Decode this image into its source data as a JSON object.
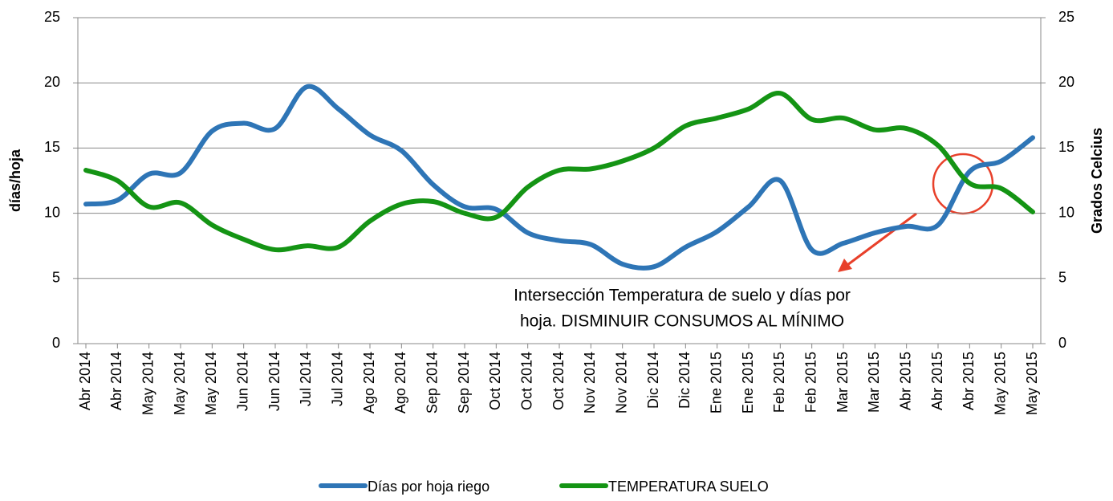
{
  "chart_data": {
    "type": "line",
    "categories": [
      "Abr 2014",
      "Abr 2014",
      "May 2014",
      "May 2014",
      "May 2014",
      "Jun 2014",
      "Jun 2014",
      "Jul 2014",
      "Jul 2014",
      "Ago 2014",
      "Ago 2014",
      "Sep 2014",
      "Sep 2014",
      "Oct 2014",
      "Oct 2014",
      "Oct 2014",
      "Nov 2014",
      "Nov 2014",
      "Dic 2014",
      "Dic 2014",
      "Ene 2015",
      "Ene 2015",
      "Feb 2015",
      "Feb 2015",
      "Mar 2015",
      "Mar 2015",
      "Abr 2015",
      "Abr 2015",
      "Abr 2015",
      "May 2015",
      "May 2015"
    ],
    "series": [
      {
        "name": "Días por hoja riego",
        "color": "#2e75b6",
        "values": [
          10.7,
          11,
          13,
          13.1,
          16.3,
          16.9,
          16.5,
          19.7,
          18,
          16,
          14.8,
          12.2,
          10.5,
          10.3,
          8.5,
          7.9,
          7.6,
          6.1,
          5.9,
          7.4,
          8.6,
          10.5,
          12.5,
          7.2,
          7.7,
          8.5,
          9,
          9.1,
          13.2,
          14,
          15.8
        ]
      },
      {
        "name": "TEMPERATURA SUELO",
        "color": "#149414",
        "axis": "y2",
        "values": [
          13.3,
          12.5,
          10.5,
          10.8,
          9.1,
          8,
          7.2,
          7.5,
          7.4,
          9.4,
          10.7,
          10.9,
          10,
          9.7,
          12,
          13.3,
          13.4,
          14,
          15,
          16.7,
          17.3,
          18,
          19.2,
          17.2,
          17.3,
          16.4,
          16.5,
          15.2,
          12.3,
          11.9,
          10.1
        ]
      }
    ],
    "ylabel": "días/hoja",
    "y2label": "Grados Celcius",
    "ylim": [
      0,
      25
    ],
    "yticks": [
      0,
      5,
      10,
      15,
      20,
      25
    ],
    "y2lim": [
      0,
      25
    ],
    "y2ticks": [
      0,
      5,
      10,
      15,
      20,
      25
    ],
    "grid": true,
    "annotations": [
      "Intersección Temperatura de suelo y días por",
      "hoja. DISMINUIR CONSUMOS AL MÍNIMO"
    ],
    "legend": "bottom"
  }
}
